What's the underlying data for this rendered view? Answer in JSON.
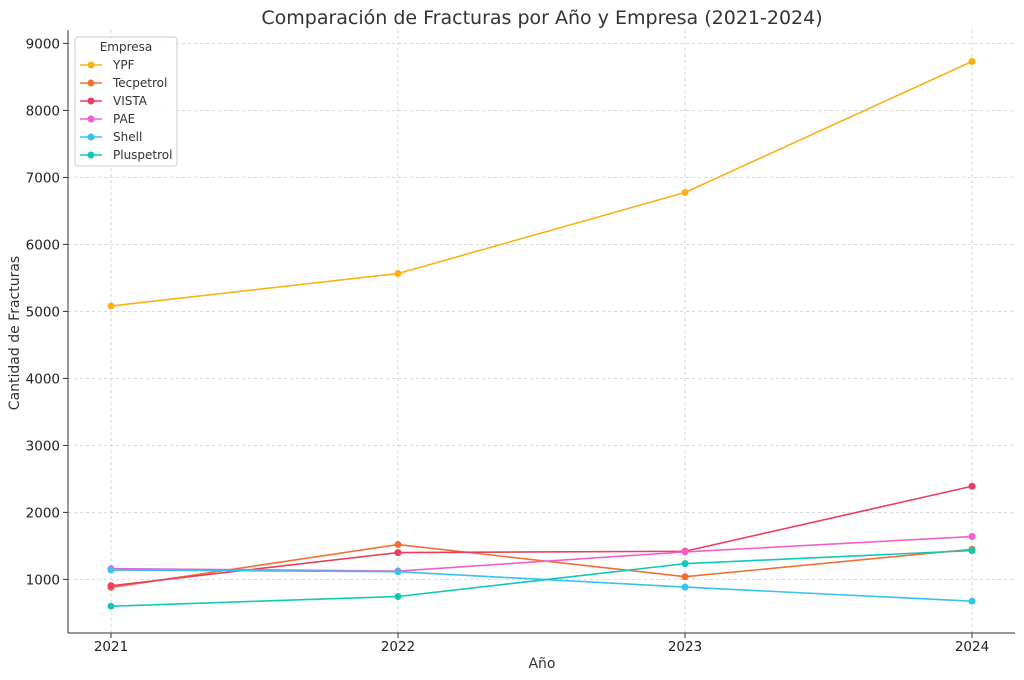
{
  "chart_data": {
    "type": "line",
    "title": "Comparación de Fracturas por Año y Empresa (2021-2024)",
    "xlabel": "Año",
    "ylabel": "Cantidad de Fracturas",
    "x": [
      "2021",
      "2022",
      "2023",
      "2024"
    ],
    "yticks": [
      1000,
      2000,
      3000,
      4000,
      5000,
      6000,
      7000,
      8000,
      9000
    ],
    "ylim": [
      200,
      9200
    ],
    "grid": true,
    "legend": {
      "title": "Empresa",
      "placement": "top-left"
    },
    "series": [
      {
        "name": "YPF",
        "color": "#fbb116",
        "values": [
          5080,
          5565,
          6775,
          8730
        ]
      },
      {
        "name": "Tecpetrol",
        "color": "#f07032",
        "values": [
          880,
          1520,
          1040,
          1450
        ]
      },
      {
        "name": "VISTA",
        "color": "#eb3d5d",
        "values": [
          905,
          1400,
          1420,
          2390
        ]
      },
      {
        "name": "PAE",
        "color": "#f05ed0",
        "values": [
          1160,
          1125,
          1410,
          1640
        ]
      },
      {
        "name": "Shell",
        "color": "#37c3ef",
        "values": [
          1140,
          1115,
          885,
          675
        ]
      },
      {
        "name": "Pluspetrol",
        "color": "#10c9b5",
        "values": [
          600,
          745,
          1235,
          1430
        ]
      }
    ]
  }
}
